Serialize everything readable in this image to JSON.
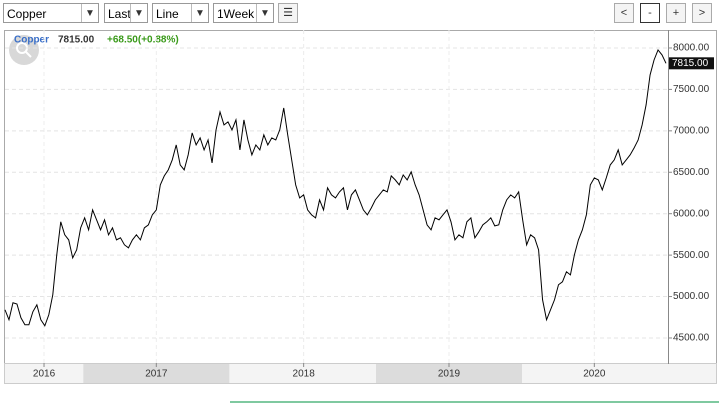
{
  "toolbar": {
    "symbol": "Copper",
    "field": "Last",
    "style": "Line",
    "period": "1Week"
  },
  "nav": [
    "<",
    "-",
    "+",
    ">"
  ],
  "chart_data": {
    "type": "line",
    "legend": {
      "name": "Copper",
      "price": "7815.00",
      "change": "+68.50(+0.88%)"
    },
    "series": [
      {
        "name": "Copper",
        "color": "#000000",
        "values": [
          4840,
          4720,
          4925,
          4910,
          4744,
          4659,
          4659,
          4816,
          4901,
          4720,
          4647,
          4780,
          5021,
          5504,
          5902,
          5745,
          5684,
          5467,
          5564,
          5829,
          5950,
          5805,
          6046,
          5926,
          5805,
          5926,
          5745,
          5829,
          5684,
          5709,
          5624,
          5588,
          5684,
          5745,
          5684,
          5829,
          5865,
          5986,
          6046,
          6348,
          6456,
          6529,
          6649,
          6830,
          6589,
          6529,
          6710,
          6975,
          6830,
          6915,
          6770,
          6890,
          6613,
          7011,
          7228,
          7071,
          7108,
          7011,
          7132,
          6770,
          7132,
          6890,
          6710,
          6830,
          6770,
          6951,
          6830,
          6915,
          6890,
          7011,
          7276,
          6951,
          6649,
          6348,
          6191,
          6227,
          6046,
          5986,
          5950,
          6167,
          6046,
          6312,
          6227,
          6191,
          6263,
          6312,
          6046,
          6227,
          6287,
          6167,
          6046,
          5986,
          6070,
          6167,
          6227,
          6287,
          6263,
          6456,
          6408,
          6348,
          6468,
          6408,
          6505,
          6348,
          6227,
          6046,
          5865,
          5805,
          5950,
          5926,
          5986,
          6046,
          5902,
          5684,
          5745,
          5709,
          5902,
          5950,
          5709,
          5781,
          5865,
          5902,
          5950,
          5853,
          5865,
          6046,
          6167,
          6227,
          6191,
          6263,
          5926,
          5624,
          5745,
          5709,
          5564,
          4961,
          4720,
          4840,
          4961,
          5142,
          5178,
          5299,
          5262,
          5504,
          5684,
          5805,
          5986,
          6348,
          6432,
          6408,
          6287,
          6432,
          6589,
          6649,
          6770,
          6589,
          6649,
          6710,
          6794,
          6890,
          7071,
          7313,
          7674,
          7855,
          7976,
          7916,
          7815
        ]
      }
    ],
    "xlim": [
      0,
      166
    ],
    "xticks": [
      {
        "value": 9.8,
        "label": "2016"
      },
      {
        "value": 38,
        "label": "2017"
      },
      {
        "value": 75,
        "label": "2018"
      },
      {
        "value": 111.5,
        "label": "2019"
      },
      {
        "value": 148,
        "label": "2020"
      }
    ],
    "ylim": [
      4198,
      8217
    ],
    "yticks": [
      {
        "value": 4500,
        "label": "4500.00"
      },
      {
        "value": 5000,
        "label": "5000.00"
      },
      {
        "value": 5500,
        "label": "5500.00"
      },
      {
        "value": 6000,
        "label": "6000.00"
      },
      {
        "value": 6500,
        "label": "6500.00"
      },
      {
        "value": 7000,
        "label": "7000.00"
      },
      {
        "value": 7500,
        "label": "7500.00"
      },
      {
        "value": 8000,
        "label": "8000.00"
      }
    ],
    "grid": true
  }
}
